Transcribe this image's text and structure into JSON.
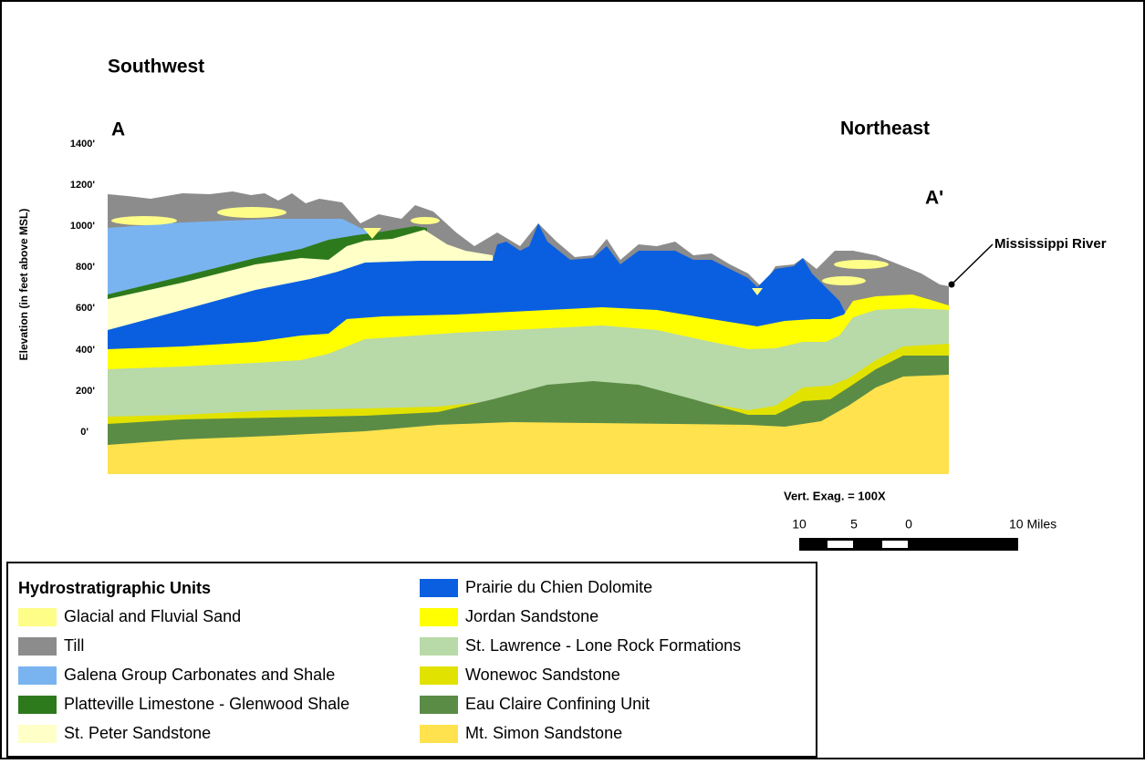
{
  "labels": {
    "southwest": "Southwest",
    "a": "A",
    "northeast": "Northeast",
    "a_prime": "A'",
    "river": "Mississippi River",
    "vert_exag": "Vert. Exag. = 100X"
  },
  "axis": {
    "title": "Elevation (in feet above MSL)",
    "ticks": [
      "1400'",
      "1200'",
      "1000'",
      "800'",
      "600'",
      "400'",
      "200'",
      "0'"
    ]
  },
  "scale": {
    "labels": [
      "10",
      "5",
      "0",
      "10 Miles"
    ]
  },
  "legend": {
    "title": "Hydrostratigraphic Units",
    "items": [
      "Glacial and Fluvial Sand",
      "Till",
      "Galena Group Carbonates and Shale",
      "Platteville Limestone - Glenwood Shale",
      "St. Peter Sandstone",
      "Prairie du Chien Dolomite",
      "Jordan Sandstone",
      "St. Lawrence - Lone Rock Formations",
      "Wonewoc Sandstone",
      "Eau Claire Confining Unit",
      "Mt. Simon Sandstone"
    ]
  }
}
